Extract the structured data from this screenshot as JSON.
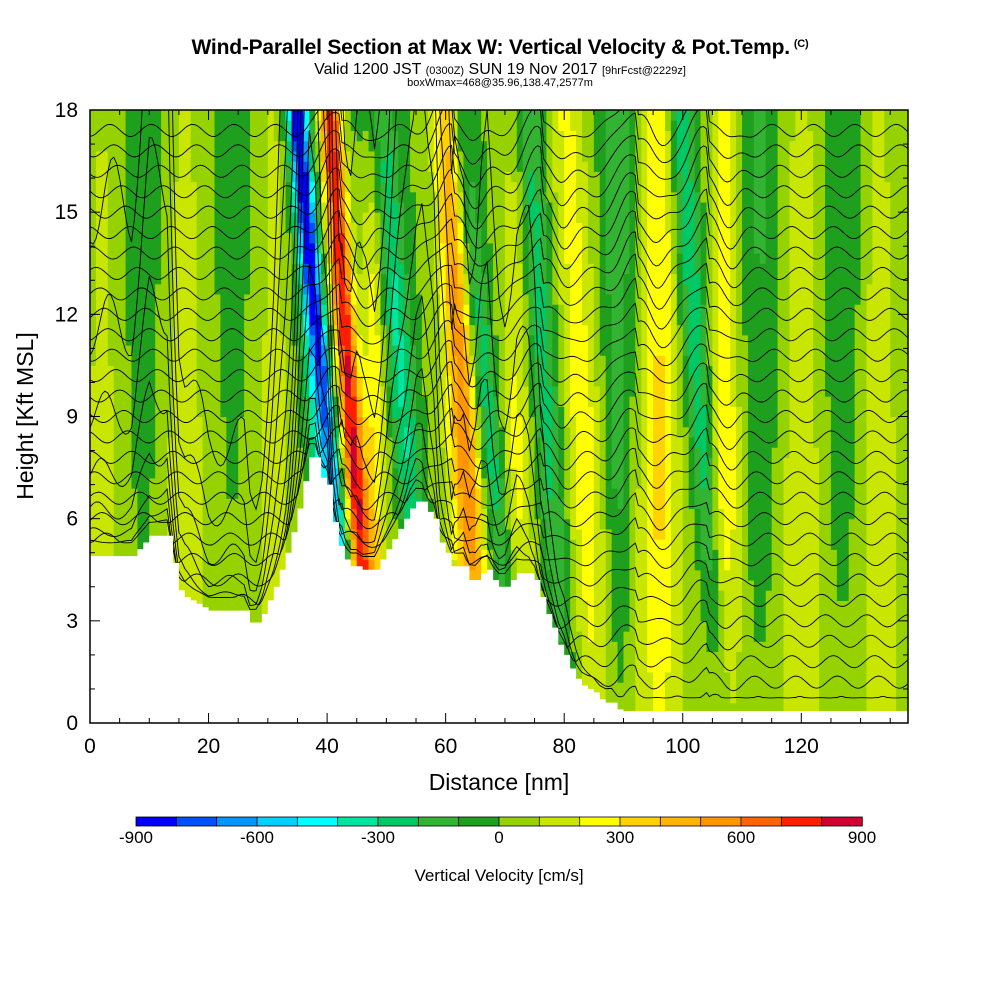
{
  "header": {
    "title": "Wind-Parallel Section at Max W: Vertical Velocity & Pot.Temp.",
    "title_flag": "(C)",
    "valid_prefix": "Valid 1200 JST",
    "valid_utc": "(0300Z)",
    "valid_date": "SUN 19 Nov 2017",
    "forecast_info": "[9hrFcst@2229z]",
    "box_info": "boxWmax=468@35.96,138.47,2577m"
  },
  "colors": {
    "contour": "#000000",
    "terrain": "#ffffff",
    "palette": [
      "#0000ff",
      "#0050ff",
      "#0096ff",
      "#00d2ff",
      "#00ffff",
      "#00e6a0",
      "#00c864",
      "#32b432",
      "#1ea01e",
      "#96d200",
      "#c8e600",
      "#ffff00",
      "#ffd200",
      "#ffb400",
      "#ff9600",
      "#ff6400",
      "#ff1e00",
      "#d20032",
      "#a00050",
      "#780078",
      "#500096"
    ]
  },
  "chart_data": {
    "type": "heatmap",
    "title": "Wind-Parallel Section at Max W: Vertical Velocity & Pot.Temp.",
    "xlabel": "Distance [nm]",
    "ylabel": "Height [Kft MSL]",
    "xlim": [
      0,
      138
    ],
    "ylim": [
      0,
      18
    ],
    "x_ticks": [
      0,
      20,
      40,
      60,
      80,
      100,
      120
    ],
    "x_tick_labels": [
      "0",
      "20",
      "40",
      "60",
      "80",
      "100",
      "120"
    ],
    "y_ticks": [
      0,
      3,
      6,
      9,
      12,
      15,
      18
    ],
    "y_tick_labels": [
      "0",
      "3",
      "6",
      "9",
      "12",
      "15",
      "18"
    ],
    "colorbar": {
      "label": "Vertical Velocity [cm/s]",
      "min": -900,
      "max": 900,
      "step": 100,
      "tick_values": [
        -900,
        -600,
        -300,
        0,
        300,
        600,
        900
      ],
      "tick_labels": [
        "-900",
        "-600",
        "-300",
        "0",
        "300",
        "600",
        "900"
      ]
    },
    "max_w_cm_s": 468,
    "terrain_profile": {
      "x": [
        0,
        4,
        7,
        10,
        13,
        14,
        15,
        16,
        17,
        18,
        19,
        20,
        22,
        24,
        26,
        27,
        28,
        29,
        30,
        31,
        32,
        33,
        34,
        35,
        36,
        37,
        38,
        39,
        40,
        41,
        42,
        43,
        44,
        45,
        46,
        47,
        48,
        49,
        50,
        51,
        52,
        53,
        54,
        55,
        56,
        57,
        58,
        59,
        60,
        61,
        62,
        63,
        64,
        65,
        66,
        67,
        68,
        69,
        70,
        71,
        72,
        73,
        74,
        75,
        76,
        77,
        78,
        79,
        80,
        81,
        82,
        83,
        84,
        85,
        86,
        87,
        88,
        89,
        90,
        138
      ],
      "y": [
        4.9,
        4.9,
        4.9,
        5.5,
        5.5,
        4.7,
        3.9,
        3.7,
        3.6,
        3.5,
        3.4,
        3.3,
        3.3,
        3.3,
        3.3,
        2.95,
        2.95,
        3.2,
        3.6,
        4.0,
        4.5,
        5.0,
        5.6,
        6.3,
        7.1,
        7.8,
        7.8,
        7.2,
        7.0,
        5.9,
        5.2,
        4.8,
        4.6,
        4.6,
        4.5,
        4.5,
        4.5,
        4.8,
        5.1,
        5.4,
        5.7,
        6.0,
        6.3,
        6.5,
        6.5,
        6.2,
        6.0,
        5.3,
        5.0,
        4.6,
        4.6,
        4.6,
        4.2,
        4.2,
        4.4,
        4.5,
        4.2,
        4.0,
        4.0,
        4.2,
        4.4,
        4.4,
        4.4,
        4.2,
        3.7,
        3.2,
        2.8,
        2.3,
        2.0,
        1.6,
        1.3,
        1.1,
        1.0,
        0.9,
        0.7,
        0.6,
        0.6,
        0.4,
        0.35,
        0.35
      ]
    },
    "w_field": {
      "description_units": "cm/s",
      "background_by_height": [
        [
          0,
          80
        ],
        [
          6,
          60
        ],
        [
          12,
          20
        ],
        [
          18,
          0
        ]
      ],
      "bands": [
        {
          "x": 2,
          "w": 100,
          "width": 2.5,
          "tilt": 0.0
        },
        {
          "x": 9,
          "w": -80,
          "width": 2.5,
          "tilt": 0.0
        },
        {
          "x": 16,
          "w": 120,
          "width": 3.0,
          "tilt": 0.0
        },
        {
          "x": 24,
          "w": -60,
          "width": 2.5,
          "tilt": 0.0
        },
        {
          "x": 31,
          "w": 110,
          "width": 2.5,
          "tilt": 0.0
        },
        {
          "x": 38,
          "w": -350,
          "width": 2.0,
          "tilt": -0.3
        },
        {
          "x": 40,
          "w": -620,
          "width": 1.6,
          "tilt": -0.6
        },
        {
          "x": 44,
          "w": 780,
          "width": 1.8,
          "tilt": -0.4
        },
        {
          "x": 48,
          "w": 250,
          "width": 2.0,
          "tilt": 0.0
        },
        {
          "x": 53,
          "w": -350,
          "width": 2.5,
          "tilt": -0.5
        },
        {
          "x": 63,
          "w": 550,
          "width": 2.5,
          "tilt": -0.3
        },
        {
          "x": 67,
          "w": -320,
          "width": 2.2,
          "tilt": -0.6
        },
        {
          "x": 72,
          "w": 180,
          "width": 2.5,
          "tilt": 0.0
        },
        {
          "x": 77,
          "w": -280,
          "width": 2.5,
          "tilt": -0.4
        },
        {
          "x": 83,
          "w": 220,
          "width": 3.0,
          "tilt": -0.3
        },
        {
          "x": 89,
          "w": -180,
          "width": 2.5,
          "tilt": 0.0
        },
        {
          "x": 96,
          "w": 280,
          "width": 3.0,
          "tilt": 0.0
        },
        {
          "x": 103,
          "w": -300,
          "width": 2.2,
          "tilt": -0.4
        },
        {
          "x": 107,
          "w": 250,
          "width": 2.5,
          "tilt": 0.0
        },
        {
          "x": 113,
          "w": -120,
          "width": 3.0,
          "tilt": 0.0
        },
        {
          "x": 120,
          "w": 130,
          "width": 3.0,
          "tilt": 0.0
        },
        {
          "x": 127,
          "w": -100,
          "width": 3.0,
          "tilt": 0.0
        },
        {
          "x": 133,
          "w": 120,
          "width": 3.0,
          "tilt": 0.0
        }
      ]
    },
    "theta_contours": {
      "levels_start_kft": 0.6,
      "spacing_kft": 0.6,
      "count": 29,
      "wave_amplitude_kft": 1.1,
      "wave_centers": [
        42,
        61,
        76,
        92,
        104
      ]
    }
  }
}
